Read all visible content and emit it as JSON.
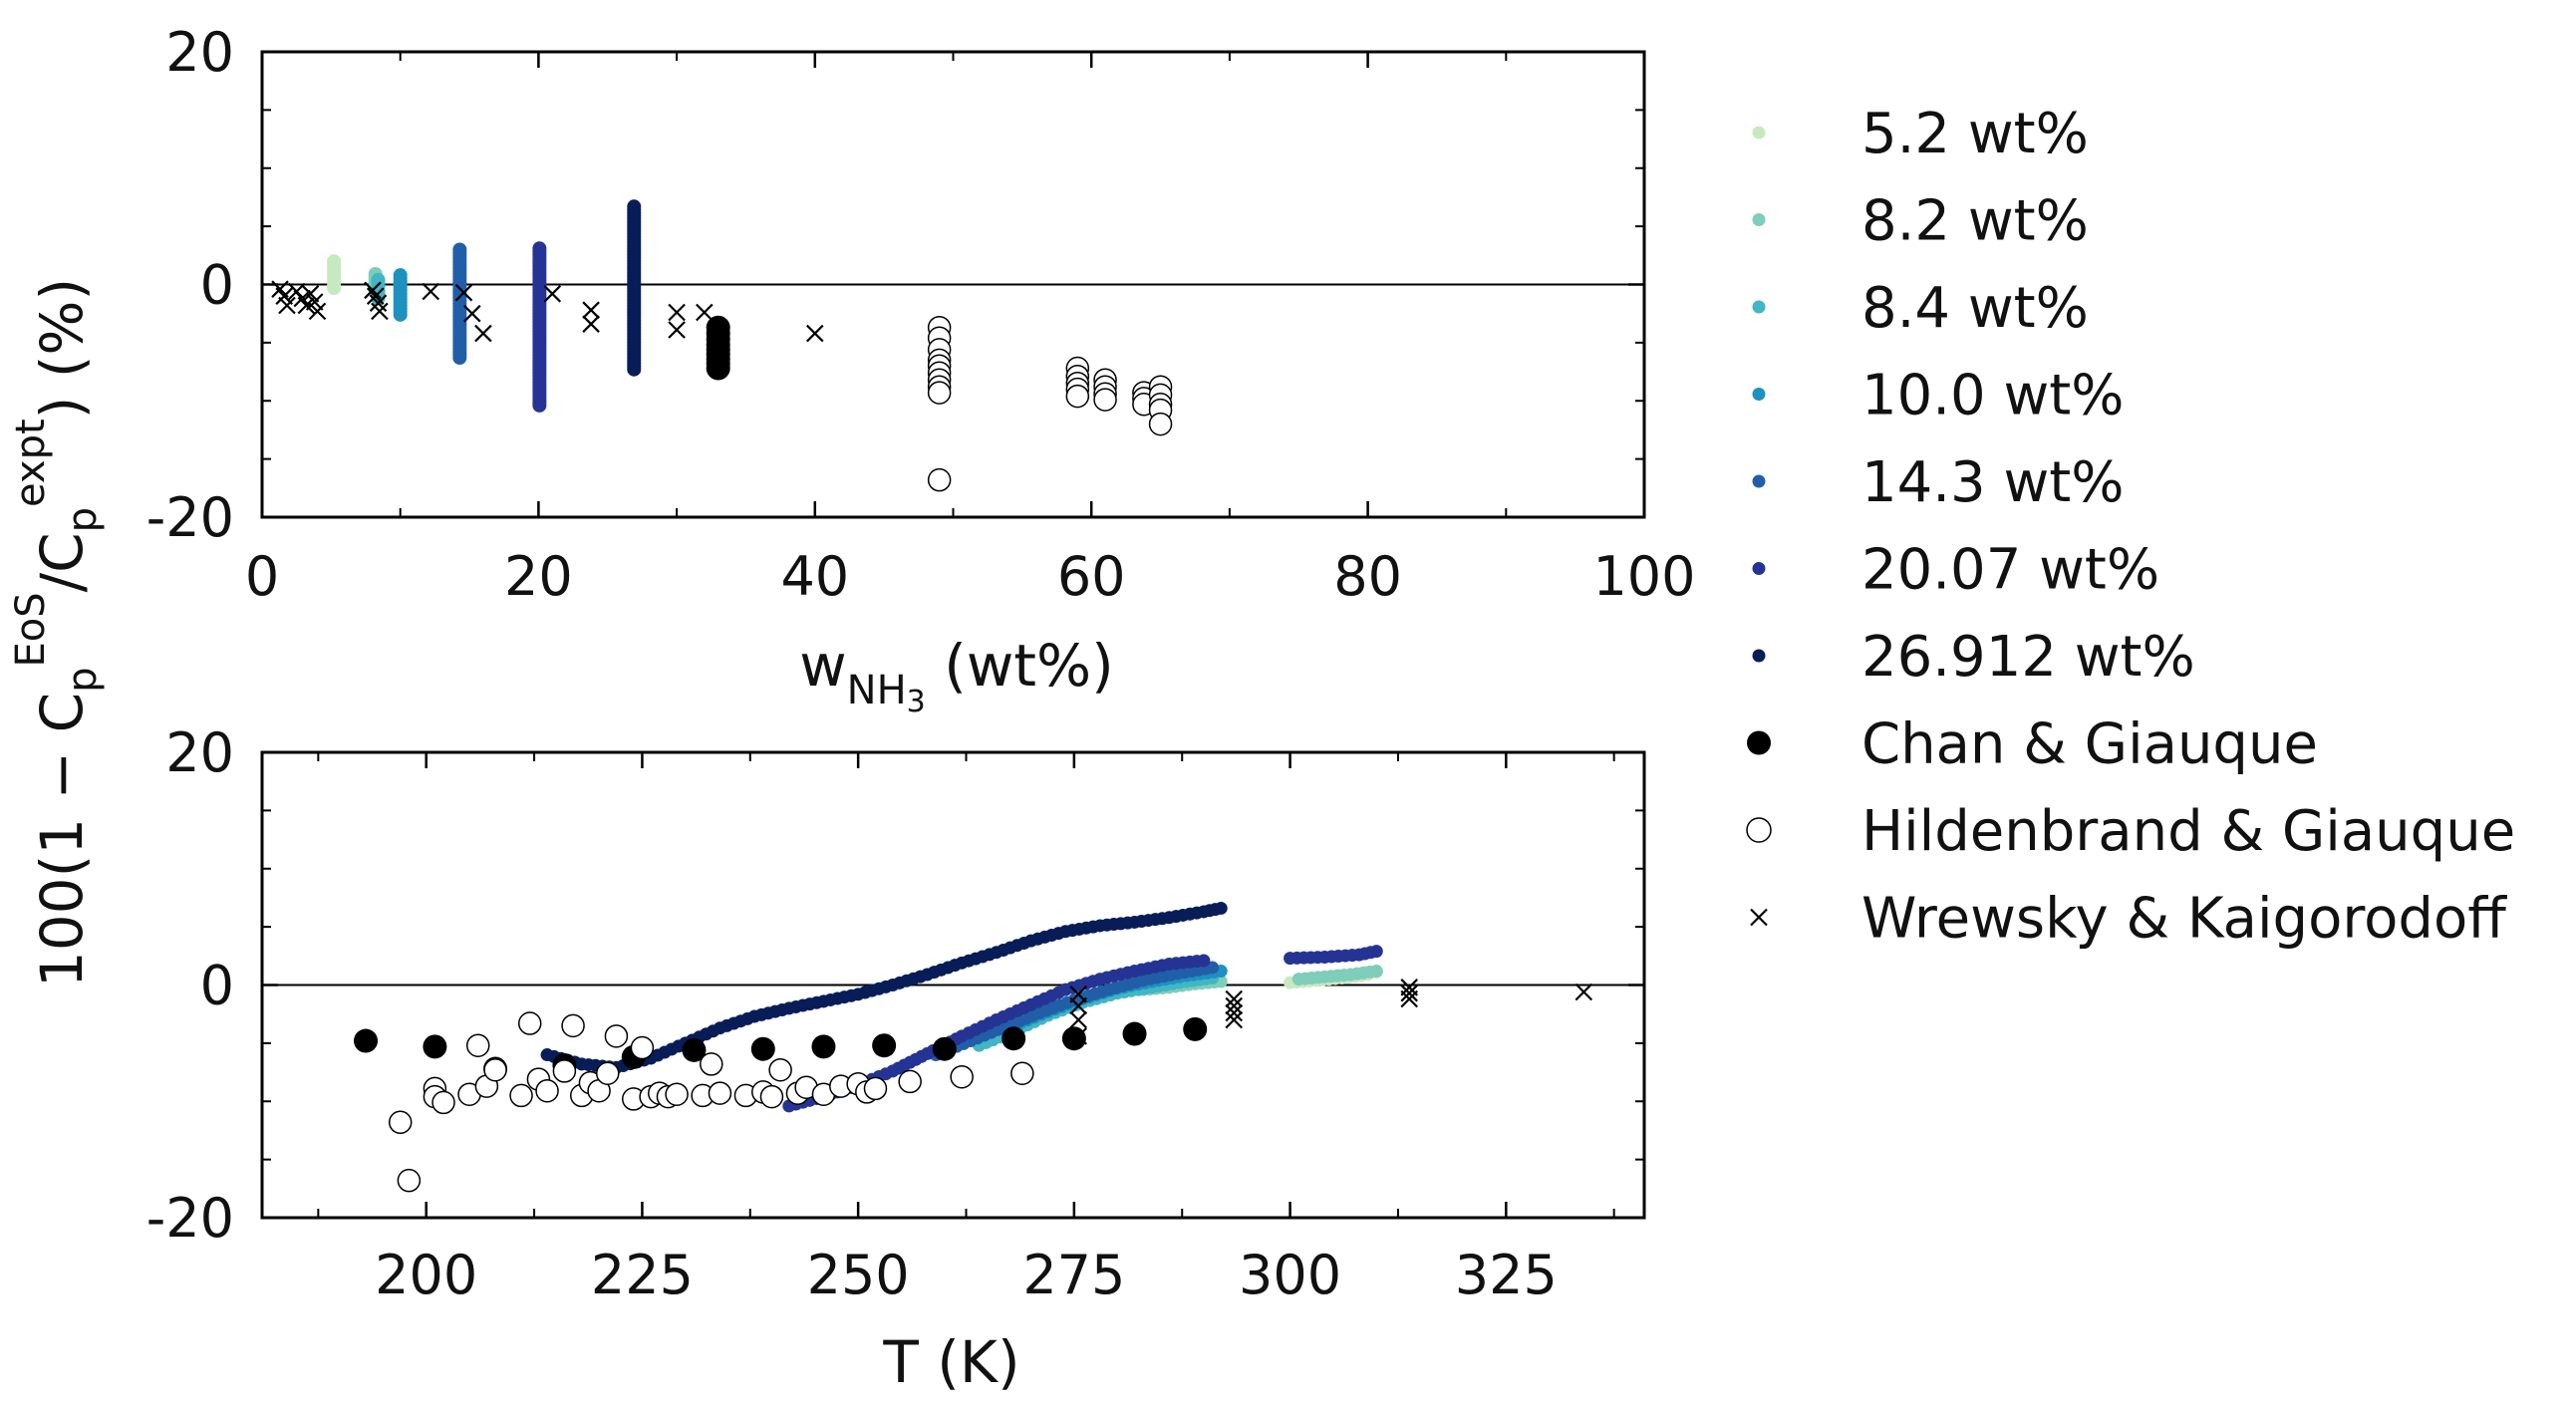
{
  "figure": {
    "ylabel_main": "100(1 − C",
    "ylabel_sub1": "p",
    "ylabel_sup1": "EoS",
    "ylabel_mid": "/C",
    "ylabel_sub2": "p",
    "ylabel_sup2": "expt",
    "ylabel_tail": ") (%)"
  },
  "colors": {
    "wt5_2": "#c7e9c0",
    "wt8_2": "#7fcdbb",
    "wt8_4": "#41b6c4",
    "wt10_0": "#1d91c0",
    "wt14_3": "#225ea8",
    "wt20_07": "#253494",
    "wt26_912": "#081d58"
  },
  "legend": [
    {
      "label": "5.2 wt%",
      "marker": "dot",
      "color": "#c7e9c0"
    },
    {
      "label": "8.2 wt%",
      "marker": "dot",
      "color": "#7fcdbb"
    },
    {
      "label": "8.4 wt%",
      "marker": "dot",
      "color": "#41b6c4"
    },
    {
      "label": "10.0 wt%",
      "marker": "dot",
      "color": "#1d91c0"
    },
    {
      "label": "14.3 wt%",
      "marker": "dot",
      "color": "#225ea8"
    },
    {
      "label": "20.07 wt%",
      "marker": "dot",
      "color": "#253494"
    },
    {
      "label": "26.912 wt%",
      "marker": "dot",
      "color": "#081d58"
    },
    {
      "label": "Chan & Giauque",
      "marker": "filled-circle",
      "color": "#000000"
    },
    {
      "label": "Hildenbrand & Giauque",
      "marker": "open-circle",
      "color": "#000000"
    },
    {
      "label": "Wrewsky & Kaigorodoff",
      "marker": "cross",
      "color": "#000000"
    }
  ],
  "chart_data": [
    {
      "type": "scatter",
      "xlabel_main": "w",
      "xlabel_sub": "NH",
      "xlabel_subsub": "3",
      "xlabel_tail": " (wt%)",
      "xlim": [
        0,
        100
      ],
      "ylim": [
        -20,
        20
      ],
      "xticks": [
        "0",
        "20",
        "40",
        "60",
        "80",
        "100"
      ],
      "yticks": [
        "20",
        "0",
        "-20"
      ],
      "reference_line_y": 0,
      "series": [
        {
          "name": "5.2 wt%",
          "style": "vband",
          "color": "#c7e9c0",
          "x": 5.2,
          "ymin": -0.3,
          "ymax": 2.0
        },
        {
          "name": "8.2 wt%",
          "style": "vband",
          "color": "#7fcdbb",
          "x": 8.2,
          "ymin": -0.6,
          "ymax": 0.9
        },
        {
          "name": "8.4 wt%",
          "style": "vband",
          "color": "#41b6c4",
          "x": 8.4,
          "ymin": -1.2,
          "ymax": 0.4
        },
        {
          "name": "10.0 wt%",
          "style": "vband",
          "color": "#1d91c0",
          "x": 10.0,
          "ymin": -2.6,
          "ymax": 0.8
        },
        {
          "name": "14.3 wt%",
          "style": "vband",
          "color": "#225ea8",
          "x": 14.3,
          "ymin": -6.3,
          "ymax": 3.0
        },
        {
          "name": "20.07 wt%",
          "style": "vband",
          "color": "#253494",
          "x": 20.07,
          "ymin": -10.4,
          "ymax": 3.1
        },
        {
          "name": "26.912 wt%",
          "style": "vband",
          "color": "#081d58",
          "x": 26.912,
          "ymin": -7.3,
          "ymax": 6.7
        },
        {
          "name": "Chan & Giauque",
          "style": "filled-circle",
          "color": "#000000",
          "points": [
            [
              33,
              -3.7
            ],
            [
              33,
              -4.2
            ],
            [
              33,
              -4.7
            ],
            [
              33,
              -5.2
            ],
            [
              33,
              -5.6
            ],
            [
              33,
              -6.0
            ],
            [
              33,
              -6.4
            ],
            [
              33,
              -6.8
            ],
            [
              33,
              -7.2
            ]
          ]
        },
        {
          "name": "Hildenbrand & Giauque",
          "style": "open-circle",
          "color": "#000000",
          "points": [
            [
              49,
              -3.7
            ],
            [
              49,
              -4.6
            ],
            [
              49,
              -5.6
            ],
            [
              49,
              -6.5
            ],
            [
              49,
              -7.0
            ],
            [
              49,
              -7.6
            ],
            [
              49,
              -8.2
            ],
            [
              49,
              -8.8
            ],
            [
              49,
              -9.3
            ],
            [
              49,
              -16.8
            ],
            [
              59,
              -7.2
            ],
            [
              59,
              -7.9
            ],
            [
              59,
              -8.5
            ],
            [
              59,
              -9.0
            ],
            [
              59,
              -9.6
            ],
            [
              61,
              -8.2
            ],
            [
              61,
              -8.8
            ],
            [
              61,
              -9.4
            ],
            [
              61,
              -9.9
            ],
            [
              63.8,
              -9.3
            ],
            [
              63.8,
              -9.8
            ],
            [
              63.8,
              -10.3
            ],
            [
              65,
              -8.8
            ],
            [
              65,
              -9.5
            ],
            [
              65,
              -10.3
            ],
            [
              65,
              -10.8
            ],
            [
              65,
              -12.0
            ]
          ]
        },
        {
          "name": "Wrewsky & Kaigorodoff",
          "style": "cross",
          "color": "#000000",
          "points": [
            [
              1.3,
              -0.4
            ],
            [
              1.6,
              -1.0
            ],
            [
              1.8,
              -1.8
            ],
            [
              2.5,
              -0.6
            ],
            [
              2.9,
              -1.2
            ],
            [
              3.2,
              -1.8
            ],
            [
              3.5,
              -0.8
            ],
            [
              3.8,
              -1.5
            ],
            [
              4.0,
              -2.3
            ],
            [
              8.0,
              -0.5
            ],
            [
              8.2,
              -1.0
            ],
            [
              8.4,
              -1.6
            ],
            [
              8.5,
              -2.3
            ],
            [
              12.2,
              -0.6
            ],
            [
              14.6,
              -0.7
            ],
            [
              15.2,
              -2.5
            ],
            [
              16.0,
              -4.2
            ],
            [
              21.0,
              -0.8
            ],
            [
              23.8,
              -2.2
            ],
            [
              23.8,
              -3.4
            ],
            [
              30.0,
              -2.4
            ],
            [
              30.0,
              -3.9
            ],
            [
              32.0,
              -2.4
            ],
            [
              40.0,
              -4.2
            ]
          ]
        }
      ]
    },
    {
      "type": "scatter",
      "xlabel": "T (K)",
      "xlim": [
        181,
        341
      ],
      "ylim": [
        -20,
        20
      ],
      "xticks": [
        "200",
        "225",
        "250",
        "275",
        "300",
        "325"
      ],
      "yticks": [
        "20",
        "0",
        "-20"
      ],
      "reference_line_y": 0,
      "series": [
        {
          "name": "5.2 wt%",
          "style": "dot-line",
          "color": "#c7e9c0",
          "x": [
            300,
            303,
            306,
            309,
            310
          ],
          "y": [
            0.2,
            0.4,
            0.6,
            0.9,
            1.1
          ]
        },
        {
          "name": "8.2 wt%",
          "style": "dot-line",
          "color": "#7fcdbb",
          "x": [
            283,
            286,
            289,
            292,
            301,
            304,
            307,
            310
          ],
          "y": [
            -0.4,
            -0.2,
            0.1,
            0.3,
            0.5,
            0.7,
            0.9,
            1.2
          ]
        },
        {
          "name": "8.4 wt%",
          "style": "dot-line",
          "color": "#41b6c4",
          "x": [
            264,
            268,
            272,
            276,
            280,
            284,
            288,
            291
          ],
          "y": [
            -5.2,
            -4.0,
            -2.6,
            -1.5,
            -0.7,
            -0.2,
            0.3,
            0.6
          ]
        },
        {
          "name": "10.0 wt%",
          "style": "dot-line",
          "color": "#1d91c0",
          "x": [
            268,
            272,
            276,
            280,
            284,
            288,
            292
          ],
          "y": [
            -3.5,
            -2.3,
            -1.2,
            -0.3,
            0.3,
            0.8,
            1.2
          ]
        },
        {
          "name": "14.3 wt%",
          "style": "dot-line",
          "color": "#225ea8",
          "x": [
            259,
            263,
            267,
            271,
            275,
            279,
            283,
            287,
            291
          ],
          "y": [
            -6.0,
            -4.8,
            -3.6,
            -2.4,
            -1.3,
            -0.4,
            0.4,
            1.0,
            1.5
          ]
        },
        {
          "name": "20.07 wt%",
          "style": "dot-line",
          "color": "#253494",
          "x": [
            242,
            246,
            250,
            254,
            258,
            262,
            266,
            270,
            274,
            278,
            282,
            286,
            290,
            300,
            304,
            308,
            310
          ],
          "y": [
            -10.4,
            -9.6,
            -8.6,
            -7.4,
            -5.9,
            -4.4,
            -3.0,
            -1.7,
            -0.4,
            0.5,
            1.2,
            1.8,
            2.1,
            2.3,
            2.4,
            2.6,
            2.9
          ]
        },
        {
          "name": "26.912 wt%",
          "style": "dot-line",
          "color": "#081d58",
          "x": [
            214,
            218,
            222,
            226,
            230,
            234,
            238,
            242,
            246,
            250,
            254,
            258,
            262,
            266,
            270,
            274,
            278,
            282,
            286,
            290,
            292
          ],
          "y": [
            -6.0,
            -6.8,
            -7.1,
            -6.3,
            -5.0,
            -3.7,
            -2.7,
            -2.0,
            -1.4,
            -0.8,
            0.0,
            0.9,
            1.9,
            2.8,
            3.8,
            4.6,
            5.1,
            5.4,
            5.8,
            6.3,
            6.6
          ]
        },
        {
          "name": "Chan & Giauque",
          "style": "filled-circle",
          "color": "#000000",
          "x": [
            193,
            201,
            208,
            216,
            224,
            231,
            239,
            246,
            253,
            260,
            268,
            275,
            282,
            289
          ],
          "y": [
            -4.8,
            -5.3,
            -7.2,
            -6.9,
            -6.2,
            -5.6,
            -5.5,
            -5.3,
            -5.2,
            -5.5,
            -4.6,
            -4.6,
            -4.2,
            -3.8
          ]
        },
        {
          "name": "Hildenbrand & Giauque",
          "style": "open-circle",
          "color": "#000000",
          "x": [
            197,
            198,
            201,
            201,
            202,
            205,
            206,
            207,
            208,
            211,
            212,
            213,
            214,
            216,
            217,
            218,
            219,
            220,
            221,
            222,
            224,
            225,
            226,
            227,
            228,
            229,
            232,
            233,
            234,
            237,
            239,
            240,
            241,
            243,
            244,
            246,
            248,
            250,
            251,
            252,
            256,
            262,
            269
          ],
          "y": [
            -11.8,
            -16.8,
            -8.9,
            -9.6,
            -10.1,
            -9.4,
            -5.2,
            -8.7,
            -7.3,
            -9.5,
            -3.3,
            -8.1,
            -9.1,
            -7.4,
            -3.5,
            -9.5,
            -8.4,
            -9.1,
            -7.6,
            -4.4,
            -9.8,
            -5.4,
            -9.6,
            -9.3,
            -9.6,
            -9.4,
            -9.5,
            -6.8,
            -9.3,
            -9.5,
            -9.2,
            -9.6,
            -7.3,
            -9.3,
            -8.8,
            -9.4,
            -8.7,
            -8.5,
            -9.2,
            -8.9,
            -8.3,
            -7.9,
            -7.6
          ]
        },
        {
          "name": "Wrewsky & Kaigorodoff",
          "style": "cross",
          "color": "#000000",
          "x": [
            275.5,
            275.5,
            275.5,
            275.5,
            293.5,
            293.5,
            293.5,
            293.5,
            313.8,
            313.8,
            313.8,
            334
          ],
          "y": [
            -0.8,
            -1.8,
            -3.0,
            -4.4,
            -1.2,
            -1.8,
            -2.4,
            -3.0,
            -0.2,
            -0.7,
            -1.2,
            -0.6
          ]
        }
      ]
    }
  ]
}
